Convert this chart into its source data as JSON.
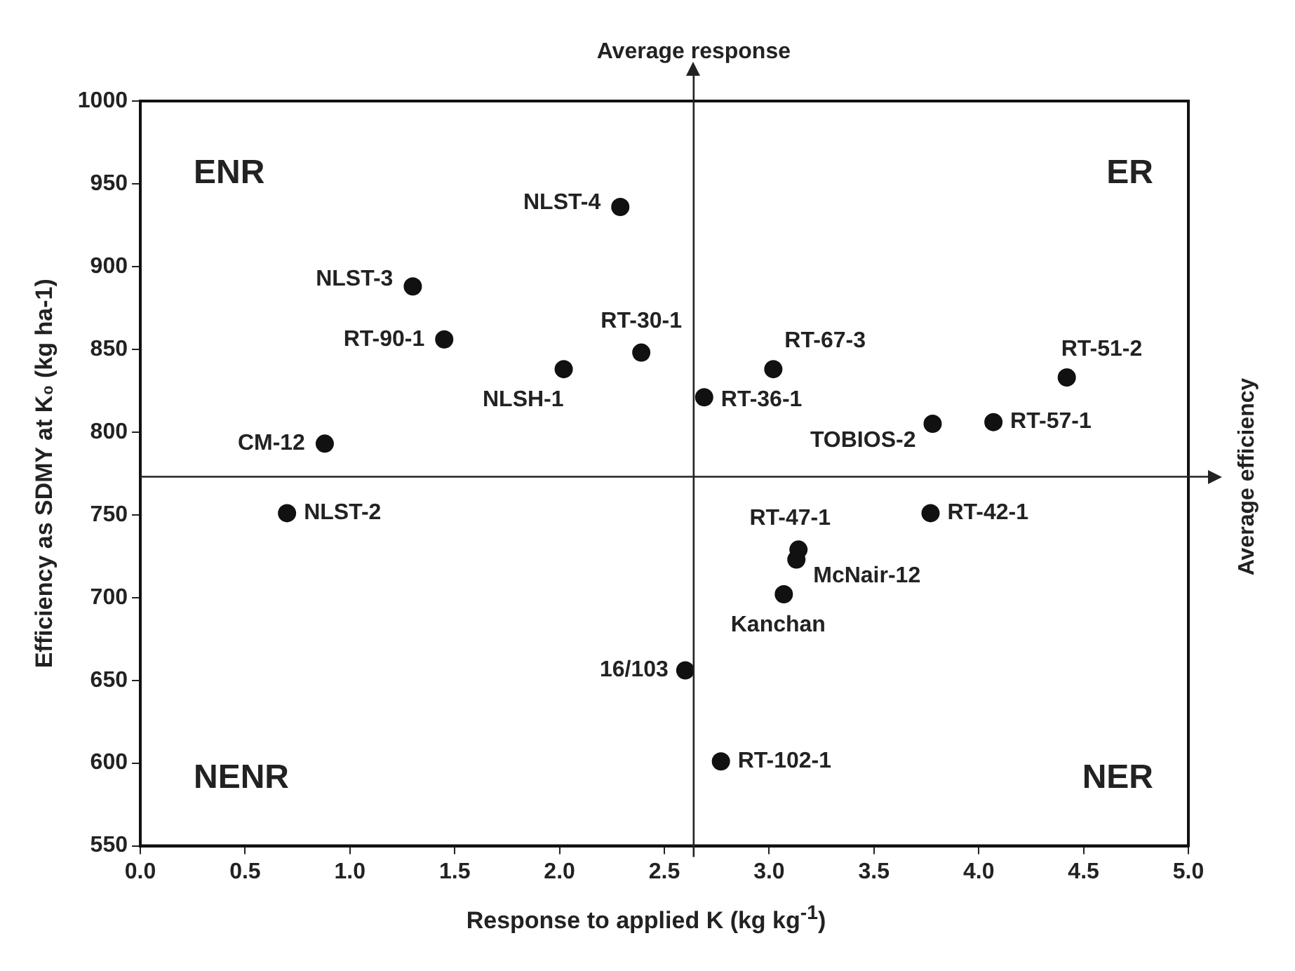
{
  "chart_data": {
    "type": "scatter",
    "xlabel": "Response to applied K (kg kg$^{-1}$)",
    "ylabel": "Efficiency as SDMY at K₀ (kg ha-1)",
    "x": [
      0.88,
      0.7,
      1.3,
      1.45,
      2.02,
      2.39,
      2.29,
      2.6,
      2.77,
      2.69,
      3.02,
      3.07,
      3.13,
      3.14,
      3.78,
      3.77,
      4.07,
      4.42
    ],
    "series": [
      {
        "color": "#111111",
        "values": [
          793,
          751,
          888,
          856,
          838,
          848,
          936,
          656,
          601,
          821,
          838,
          702,
          723,
          729,
          805,
          751,
          806,
          833
        ]
      }
    ],
    "xlim": [
      0,
      5
    ],
    "xticks": [
      {
        "value": 0,
        "label": "0.0"
      },
      {
        "value": 0.5,
        "label": "0.5"
      },
      {
        "value": 1,
        "label": "1.0"
      },
      {
        "value": 1.5,
        "label": "1.5"
      },
      {
        "value": 2,
        "label": "2.0"
      },
      {
        "value": 2.5,
        "label": "2.5"
      },
      {
        "value": 3,
        "label": "3.0"
      },
      {
        "value": 3.5,
        "label": "3.5"
      },
      {
        "value": 4,
        "label": "4.0"
      },
      {
        "value": 4.5,
        "label": "4.5"
      },
      {
        "value": 5,
        "label": "5.0"
      }
    ],
    "ylim": [
      550,
      1000
    ],
    "yticks": [
      550,
      600,
      650,
      700,
      750,
      800,
      850,
      900,
      950,
      1000
    ],
    "marker": "circle",
    "ref_lines": [
      {
        "axis": "x",
        "value": 2.64,
        "label": "Average response"
      },
      {
        "axis": "y",
        "value": 773,
        "label": "Average efficiency"
      }
    ],
    "annotations": [
      "ENR",
      "ER",
      "NENR",
      "NER",
      {
        "text": "CM-12",
        "x": 0.88,
        "y": 793
      },
      {
        "text": "NLST-2",
        "x": 0.7,
        "y": 751
      },
      {
        "text": "NLST-3",
        "x": 1.3,
        "y": 888
      },
      {
        "text": "RT-90-1",
        "x": 1.45,
        "y": 856
      },
      {
        "text": "NLSH-1",
        "x": 2.02,
        "y": 838
      },
      {
        "text": "RT-30-1",
        "x": 2.39,
        "y": 848
      },
      {
        "text": "NLST-4",
        "x": 2.29,
        "y": 936
      },
      {
        "text": "16/103",
        "x": 2.6,
        "y": 656
      },
      {
        "text": "RT-102-1",
        "x": 2.77,
        "y": 601
      },
      {
        "text": "RT-36-1",
        "x": 2.69,
        "y": 821
      },
      {
        "text": "RT-67-3",
        "x": 3.02,
        "y": 838
      },
      {
        "text": "Kanchan",
        "x": 3.07,
        "y": 702
      },
      {
        "text": "McNair-12",
        "x": 3.13,
        "y": 723
      },
      {
        "text": "RT-47-1",
        "x": 3.14,
        "y": 729
      },
      {
        "text": "TOBIOS-2",
        "x": 3.78,
        "y": 805
      },
      {
        "text": "RT-42-1",
        "x": 3.77,
        "y": 751
      },
      {
        "text": "RT-57-1",
        "x": 4.07,
        "y": 806
      },
      {
        "text": "RT-51-2",
        "x": 4.42,
        "y": 833
      }
    ]
  }
}
